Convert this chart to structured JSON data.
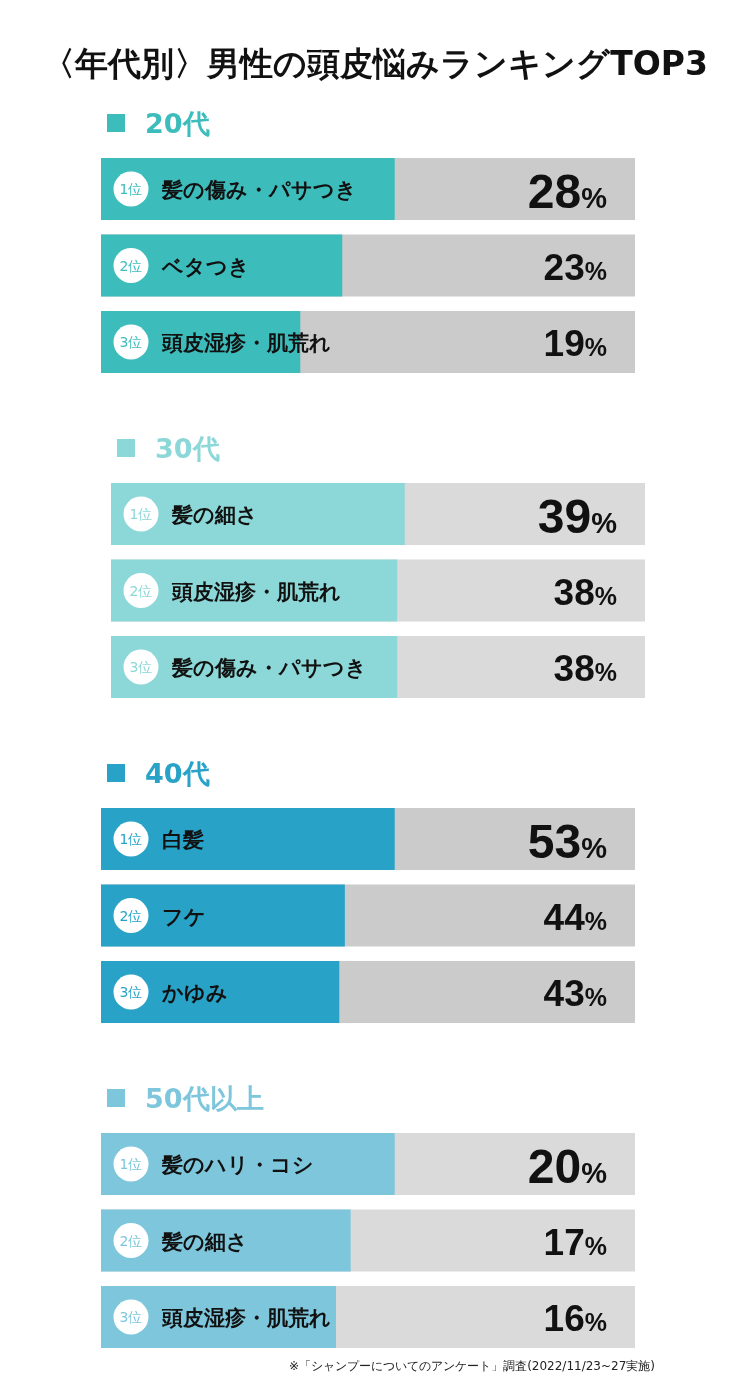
{
  "chart_data": [
    {
      "type": "bar",
      "title": "〈年代別〉男性の頭皮悩みランキングTOP3",
      "orientation": "horizontal",
      "legend": "top left",
      "categories": [
        "髪の傷み・パサつき",
        "ベタつき",
        "頭皮湿疹・肌荒れ"
      ],
      "series": [
        {
          "name": "20代",
          "color": "#3dbcbc",
          "values": [
            28,
            23,
            19
          ],
          "value_labels": [
            "28%",
            "23%",
            "19%"
          ]
        }
      ],
      "annotations": [
        {
          "text": "1位",
          "y": "髪の傷み・パサつき"
        },
        {
          "text": "2位",
          "y": "ベタつき"
        },
        {
          "text": "3位",
          "y": "頭皮湿疹・肌荒れ"
        }
      ]
    },
    {
      "type": "bar",
      "orientation": "horizontal",
      "legend": "top left",
      "categories": [
        "髪の細さ",
        "頭皮湿疹・肌荒れ",
        "髪の傷み・パサつき"
      ],
      "series": [
        {
          "name": "30代",
          "color": "#8cd7d7",
          "values": [
            39,
            38,
            38
          ],
          "value_labels": [
            "39%",
            "38%",
            "38%"
          ]
        }
      ],
      "annotations": [
        {
          "text": "1位",
          "y": "髪の細さ"
        },
        {
          "text": "2位",
          "y": "頭皮湿疹・肌荒れ"
        },
        {
          "text": "3位",
          "y": "髪の傷み・パサつき"
        }
      ]
    },
    {
      "type": "bar",
      "orientation": "horizontal",
      "legend": "top left",
      "categories": [
        "白髪",
        "フケ",
        "かゆみ"
      ],
      "series": [
        {
          "name": "40代",
          "color": "#28a2c7",
          "values": [
            53,
            44,
            43
          ],
          "value_labels": [
            "53%",
            "44%",
            "43%"
          ]
        }
      ],
      "annotations": [
        {
          "text": "1位",
          "y": "白髪"
        },
        {
          "text": "2位",
          "y": "フケ"
        },
        {
          "text": "3位",
          "y": "かゆみ"
        }
      ]
    },
    {
      "type": "bar",
      "orientation": "horizontal",
      "legend": "top left",
      "categories": [
        "髪のハリ・コシ",
        "髪の細さ",
        "頭皮湿疹・肌荒れ"
      ],
      "series": [
        {
          "name": "50代以上",
          "color": "#7dc6dc",
          "values": [
            20,
            17,
            16
          ],
          "value_labels": [
            "20%",
            "17%",
            "16%"
          ]
        }
      ],
      "annotations": [
        {
          "text": "1位",
          "y": "髪のハリ・コシ"
        },
        {
          "text": "2位",
          "y": "髪の細さ"
        },
        {
          "text": "3位",
          "y": "頭皮湿疹・肌荒れ"
        },
        "※「シャンプーについてのアンケート」調査(2022/11/23~27実施)"
      ]
    }
  ]
}
